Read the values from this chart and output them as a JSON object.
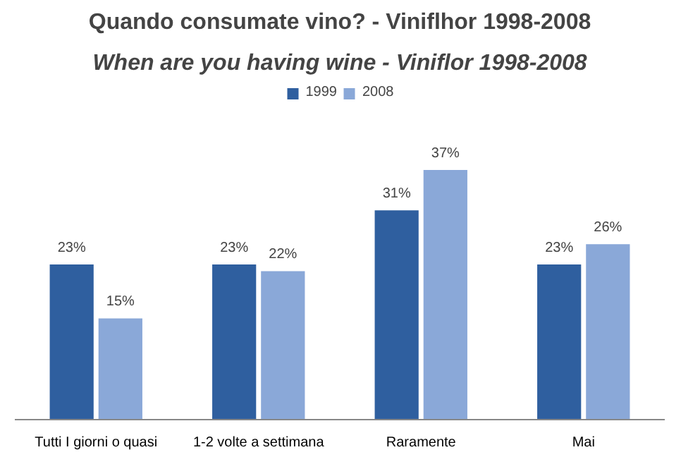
{
  "chart_data": {
    "type": "bar",
    "title": "Quando consumate vino? - Viniflhor 1998-2008",
    "subtitle": "When are you having wine - Viniflor 1998-2008",
    "categories": [
      "Tutti I giorni o quasi",
      "1-2 volte a settimana",
      "Raramente",
      "Mai"
    ],
    "series": [
      {
        "name": "1999",
        "color": "#2f5f9f",
        "values": [
          23,
          23,
          31,
          23
        ],
        "value_labels": [
          "23%",
          "23%",
          "31%",
          "23%"
        ]
      },
      {
        "name": "2008",
        "color": "#8aa8d8",
        "values": [
          15,
          22,
          37,
          26
        ],
        "value_labels": [
          "15%",
          "22%",
          "37%",
          "26%"
        ]
      }
    ],
    "legend": "top"
  }
}
